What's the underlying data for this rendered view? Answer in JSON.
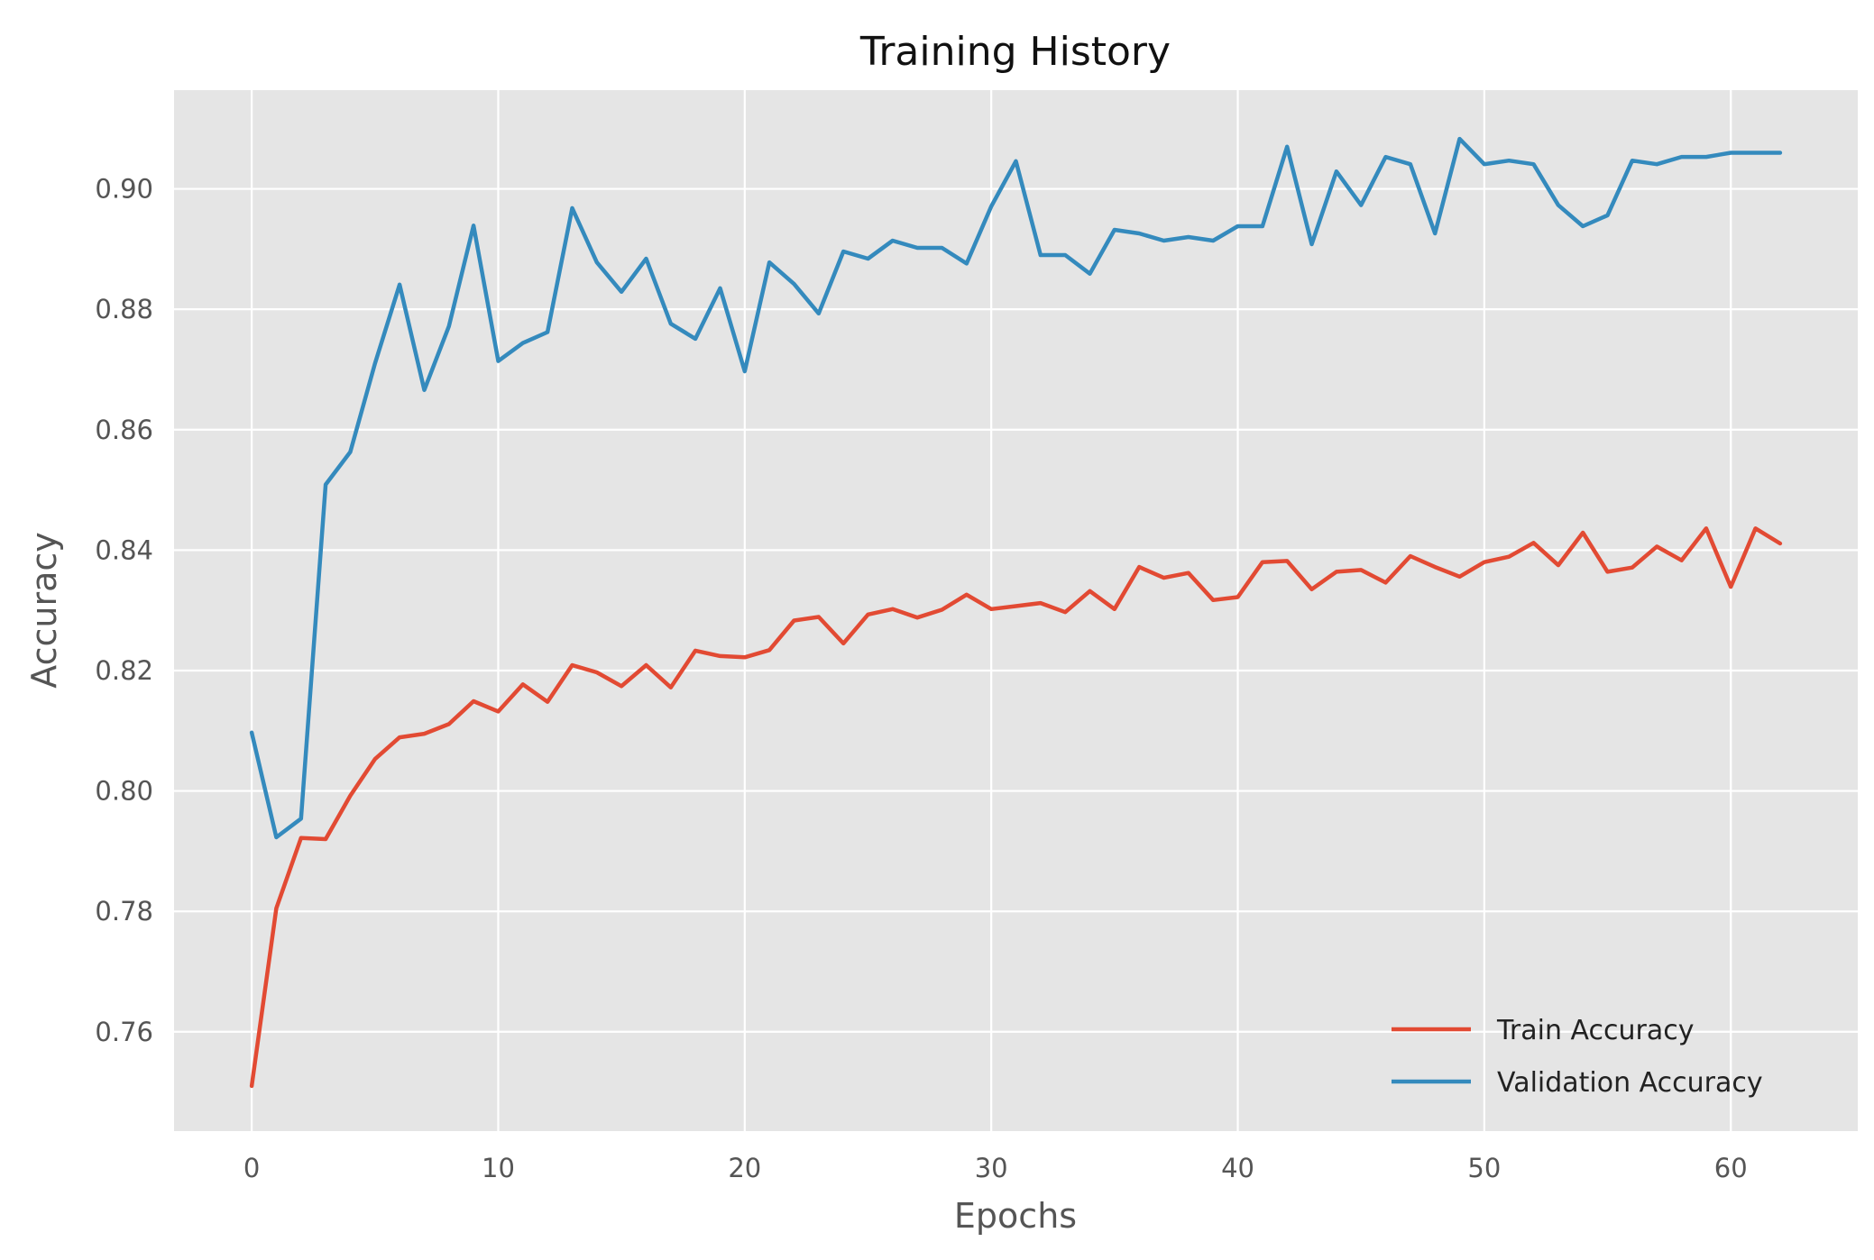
{
  "chart_data": {
    "type": "line",
    "title": "Training History",
    "xlabel": "Epochs",
    "ylabel": "Accuracy",
    "xlim": [
      -3.15,
      65.15
    ],
    "ylim": [
      0.7435,
      0.9164
    ],
    "xticks": [
      0,
      10,
      20,
      30,
      40,
      50,
      60
    ],
    "yticks": [
      0.76,
      0.78,
      0.8,
      0.82,
      0.84,
      0.86,
      0.88,
      0.9
    ],
    "ytick_labels": [
      "0.76",
      "0.78",
      "0.80",
      "0.82",
      "0.84",
      "0.86",
      "0.88",
      "0.90"
    ],
    "grid": true,
    "legend_position": "lower-right",
    "x": [
      0,
      1,
      2,
      3,
      4,
      5,
      6,
      7,
      8,
      9,
      10,
      11,
      12,
      13,
      14,
      15,
      16,
      17,
      18,
      19,
      20,
      21,
      22,
      23,
      24,
      25,
      26,
      27,
      28,
      29,
      30,
      31,
      32,
      33,
      34,
      35,
      36,
      37,
      38,
      39,
      40,
      41,
      42,
      43,
      44,
      45,
      46,
      47,
      48,
      49,
      50,
      51,
      52,
      53,
      54,
      55,
      56,
      57,
      58,
      59,
      60,
      61,
      62
    ],
    "series": [
      {
        "name": "Train Accuracy",
        "color": "#E24A33",
        "values": [
          0.751,
          0.7805,
          0.7922,
          0.792,
          0.7992,
          0.8053,
          0.8089,
          0.8095,
          0.8111,
          0.8149,
          0.8132,
          0.8177,
          0.8148,
          0.8209,
          0.8197,
          0.8174,
          0.8209,
          0.8172,
          0.8233,
          0.8224,
          0.8222,
          0.8234,
          0.8283,
          0.8289,
          0.8245,
          0.8293,
          0.8302,
          0.8288,
          0.8301,
          0.8326,
          0.8302,
          0.8307,
          0.8312,
          0.8297,
          0.8332,
          0.8302,
          0.8372,
          0.8354,
          0.8362,
          0.8317,
          0.8322,
          0.838,
          0.8382,
          0.8335,
          0.8364,
          0.8367,
          0.8346,
          0.839,
          0.8372,
          0.8356,
          0.838,
          0.8389,
          0.8412,
          0.8375,
          0.8429,
          0.8364,
          0.8371,
          0.8406,
          0.8383,
          0.8436,
          0.8339,
          0.8436,
          0.8411
        ]
      },
      {
        "name": "Validation Accuracy",
        "color": "#348ABD",
        "values": [
          0.8097,
          0.7923,
          0.7954,
          0.8509,
          0.8563,
          0.871,
          0.8841,
          0.8666,
          0.8772,
          0.8939,
          0.8714,
          0.8744,
          0.8762,
          0.8968,
          0.8878,
          0.8829,
          0.8884,
          0.8776,
          0.8751,
          0.8835,
          0.8697,
          0.8878,
          0.8842,
          0.8793,
          0.8896,
          0.8884,
          0.8914,
          0.8902,
          0.8902,
          0.8876,
          0.8971,
          0.9046,
          0.889,
          0.889,
          0.8859,
          0.8932,
          0.8926,
          0.8914,
          0.892,
          0.8914,
          0.8938,
          0.8938,
          0.907,
          0.8908,
          0.9029,
          0.8973,
          0.9053,
          0.9041,
          0.8926,
          0.9083,
          0.9041,
          0.9047,
          0.9041,
          0.8973,
          0.8938,
          0.8956,
          0.9047,
          0.9041,
          0.9053,
          0.9053,
          0.906,
          0.906,
          0.906
        ]
      }
    ]
  }
}
